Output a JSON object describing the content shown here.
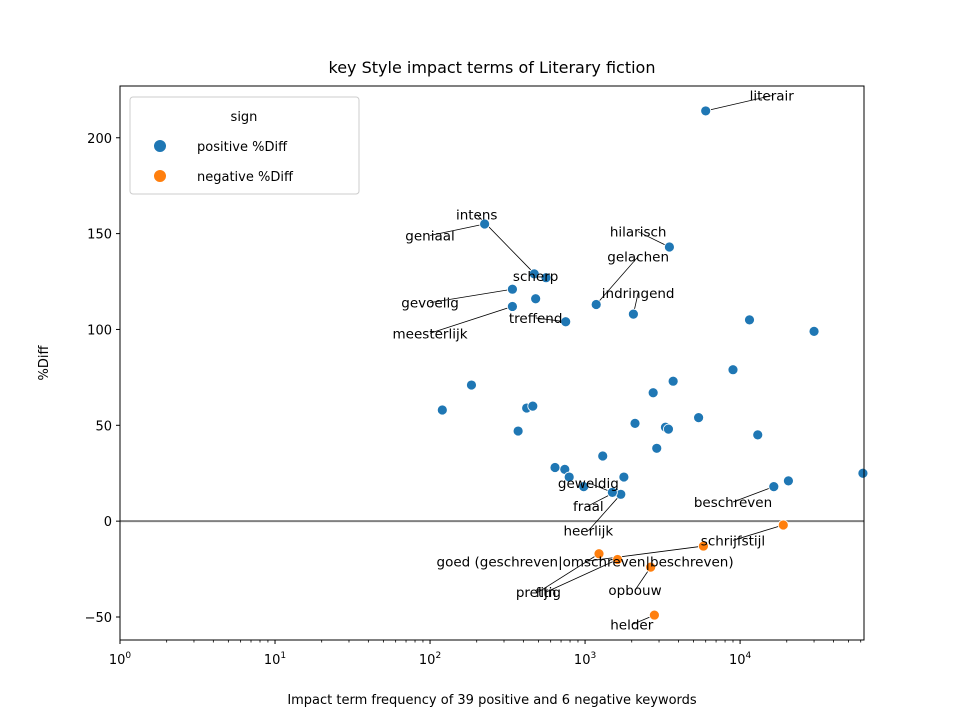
{
  "chart_data": {
    "type": "scatter",
    "title": "key Style impact terms of Literary fiction",
    "xlabel": "Impact term frequency of 39 positive and 6 negative keywords",
    "ylabel": "%Diff",
    "xscale": "log",
    "xlim": [
      1,
      63000
    ],
    "ylim": [
      -62,
      227
    ],
    "x_ticks": [
      {
        "value": 1,
        "base": "10",
        "exp": "0"
      },
      {
        "value": 10,
        "base": "10",
        "exp": "1"
      },
      {
        "value": 100,
        "base": "10",
        "exp": "2"
      },
      {
        "value": 1000,
        "base": "10",
        "exp": "3"
      },
      {
        "value": 10000,
        "base": "10",
        "exp": "4"
      }
    ],
    "y_ticks": [
      {
        "value": 200,
        "label": "200"
      },
      {
        "value": 150,
        "label": "150"
      },
      {
        "value": 100,
        "label": "100"
      },
      {
        "value": 50,
        "label": "50"
      },
      {
        "value": 0,
        "label": "0"
      },
      {
        "value": -50,
        "label": "−50"
      }
    ],
    "reference_line_y": 0,
    "legend": {
      "title": "sign",
      "placement": "upper-left",
      "entries": [
        {
          "label": "positive %Diff",
          "color": "#1f77b4"
        },
        {
          "label": "negative %Diff",
          "color": "#ff7f0e"
        }
      ]
    },
    "series": [
      {
        "name": "positive %Diff",
        "color": "#1f77b4",
        "points": [
          {
            "x": 6000,
            "y": 214
          },
          {
            "x": 225,
            "y": 155
          },
          {
            "x": 3500,
            "y": 143
          },
          {
            "x": 560,
            "y": 127
          },
          {
            "x": 470,
            "y": 129
          },
          {
            "x": 340,
            "y": 121
          },
          {
            "x": 480,
            "y": 116
          },
          {
            "x": 340,
            "y": 112
          },
          {
            "x": 1180,
            "y": 113
          },
          {
            "x": 2050,
            "y": 108
          },
          {
            "x": 750,
            "y": 104
          },
          {
            "x": 11500,
            "y": 105
          },
          {
            "x": 30000,
            "y": 99
          },
          {
            "x": 9000,
            "y": 79
          },
          {
            "x": 185,
            "y": 71
          },
          {
            "x": 3700,
            "y": 73
          },
          {
            "x": 2750,
            "y": 67
          },
          {
            "x": 120,
            "y": 58
          },
          {
            "x": 420,
            "y": 59
          },
          {
            "x": 460,
            "y": 60
          },
          {
            "x": 5400,
            "y": 54
          },
          {
            "x": 2100,
            "y": 51
          },
          {
            "x": 3300,
            "y": 49
          },
          {
            "x": 3450,
            "y": 48
          },
          {
            "x": 370,
            "y": 47
          },
          {
            "x": 13000,
            "y": 45
          },
          {
            "x": 2900,
            "y": 38
          },
          {
            "x": 1300,
            "y": 34
          },
          {
            "x": 640,
            "y": 28
          },
          {
            "x": 740,
            "y": 27
          },
          {
            "x": 62000,
            "y": 25
          },
          {
            "x": 790,
            "y": 23
          },
          {
            "x": 1780,
            "y": 23
          },
          {
            "x": 20500,
            "y": 21
          },
          {
            "x": 980,
            "y": 18
          },
          {
            "x": 16500,
            "y": 18
          },
          {
            "x": 1550,
            "y": 15
          },
          {
            "x": 1700,
            "y": 14
          },
          {
            "x": 1500,
            "y": 15
          }
        ]
      },
      {
        "name": "negative %Diff",
        "color": "#ff7f0e",
        "points": [
          {
            "x": 19000,
            "y": -2
          },
          {
            "x": 5800,
            "y": -13
          },
          {
            "x": 1230,
            "y": -17
          },
          {
            "x": 1620,
            "y": -20
          },
          {
            "x": 2650,
            "y": -24
          },
          {
            "x": 2800,
            "y": -49
          }
        ]
      }
    ],
    "annotations": [
      {
        "text": "literair",
        "x": 6000,
        "y": 214,
        "tx": 16000,
        "ty": 222
      },
      {
        "text": "intens",
        "x": 460,
        "y": 130,
        "tx": 200,
        "ty": 160
      },
      {
        "text": "geniaal",
        "x": 225,
        "y": 155,
        "tx": 100,
        "ty": 149
      },
      {
        "text": "hilarisch",
        "x": 3500,
        "y": 143,
        "tx": 2200,
        "ty": 151
      },
      {
        "text": "gelachen",
        "x": 1180,
        "y": 113,
        "tx": 2200,
        "ty": 138
      },
      {
        "text": "scherp",
        "x": 560,
        "y": 127,
        "tx": 480,
        "ty": 128
      },
      {
        "text": "indringend",
        "x": 2050,
        "y": 108,
        "tx": 2200,
        "ty": 119
      },
      {
        "text": "gevoelig",
        "x": 340,
        "y": 121,
        "tx": 100,
        "ty": 114
      },
      {
        "text": "treffend",
        "x": 750,
        "y": 104,
        "tx": 480,
        "ty": 106
      },
      {
        "text": "meesterlijk",
        "x": 340,
        "y": 112,
        "tx": 100,
        "ty": 98
      },
      {
        "text": "geweldig",
        "x": 1500,
        "y": 15,
        "tx": 1050,
        "ty": 20
      },
      {
        "text": "beschreven",
        "x": 16500,
        "y": 18,
        "tx": 9000,
        "ty": 10
      },
      {
        "text": "fraal",
        "x": 1550,
        "y": 15,
        "tx": 1050,
        "ty": 8
      },
      {
        "text": "heerlijk",
        "x": 1700,
        "y": 14,
        "tx": 1050,
        "ty": -5
      },
      {
        "text": "schrijfstijl",
        "x": 19000,
        "y": -2,
        "tx": 9000,
        "ty": -10
      },
      {
        "text": "goed (geschreven|omschreven|beschreven)",
        "x": 5800,
        "y": -13,
        "tx": 1000,
        "ty": -21
      },
      {
        "text": "prettig",
        "x": 1230,
        "y": -17,
        "tx": 500,
        "ty": -37
      },
      {
        "text": "fijn",
        "x": 1620,
        "y": -20,
        "tx": 560,
        "ty": -37
      },
      {
        "text": "opbouw",
        "x": 2650,
        "y": -24,
        "tx": 2100,
        "ty": -36
      },
      {
        "text": "helder",
        "x": 2800,
        "y": -49,
        "tx": 2000,
        "ty": -54
      }
    ]
  }
}
